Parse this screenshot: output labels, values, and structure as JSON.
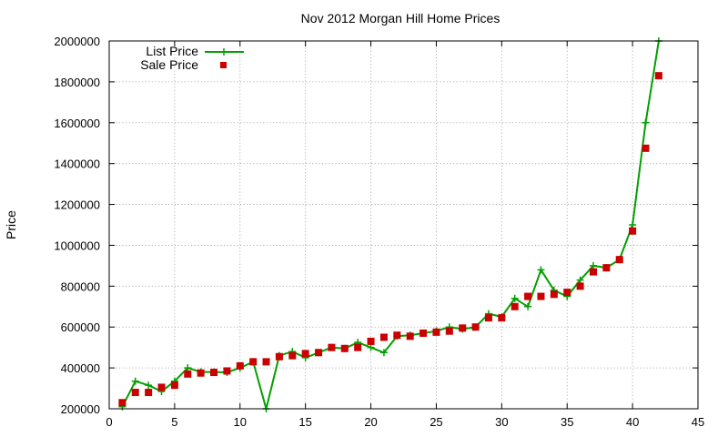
{
  "chart_data": {
    "type": "line",
    "title": "Nov 2012 Morgan Hill Home Prices",
    "xlabel": "",
    "ylabel": "Price",
    "xlim": [
      0,
      45
    ],
    "ylim": [
      200000,
      2000000
    ],
    "x_ticks": [
      "0",
      "5",
      "10",
      "15",
      "20",
      "25",
      "30",
      "35",
      "40",
      "45"
    ],
    "y_ticks": [
      "200000",
      "400000",
      "600000",
      "800000",
      "1000000",
      "1200000",
      "1400000",
      "1600000",
      "1800000",
      "2000000"
    ],
    "grid": true,
    "legend_position": "top-left",
    "colors": {
      "list": "#00a000",
      "sale": "#cc0000"
    },
    "series": [
      {
        "name": "List Price",
        "style": "line-with-plus-markers",
        "x": [
          1,
          2,
          3,
          4,
          5,
          6,
          7,
          8,
          9,
          10,
          11,
          12,
          13,
          14,
          15,
          16,
          17,
          18,
          19,
          20,
          21,
          22,
          23,
          24,
          25,
          26,
          27,
          28,
          29,
          30,
          31,
          32,
          33,
          34,
          35,
          36,
          37,
          38,
          39,
          40,
          41,
          42
        ],
        "values": [
          210000,
          335000,
          315000,
          285000,
          335000,
          400000,
          380000,
          380000,
          378000,
          400000,
          430000,
          200000,
          460000,
          480000,
          450000,
          475000,
          500000,
          495000,
          525000,
          500000,
          475000,
          555000,
          560000,
          570000,
          580000,
          600000,
          590000,
          600000,
          665000,
          650000,
          740000,
          700000,
          880000,
          780000,
          750000,
          830000,
          900000,
          890000,
          930000,
          1100000,
          1600000,
          2000000
        ]
      },
      {
        "name": "Sale Price",
        "style": "square-markers",
        "x": [
          1,
          2,
          3,
          4,
          5,
          6,
          7,
          8,
          9,
          10,
          11,
          12,
          13,
          14,
          15,
          16,
          17,
          18,
          19,
          20,
          21,
          22,
          23,
          24,
          25,
          26,
          27,
          28,
          29,
          30,
          31,
          32,
          33,
          34,
          35,
          36,
          37,
          38,
          39,
          40,
          41,
          42
        ],
        "values": [
          230000,
          280000,
          280000,
          305000,
          315000,
          370000,
          375000,
          378000,
          385000,
          410000,
          430000,
          430000,
          455000,
          460000,
          470000,
          475000,
          500000,
          495000,
          500000,
          530000,
          550000,
          560000,
          555000,
          570000,
          575000,
          580000,
          595000,
          600000,
          645000,
          645000,
          700000,
          750000,
          750000,
          760000,
          770000,
          800000,
          870000,
          890000,
          930000,
          1070000,
          1475000,
          1830000
        ]
      }
    ]
  }
}
